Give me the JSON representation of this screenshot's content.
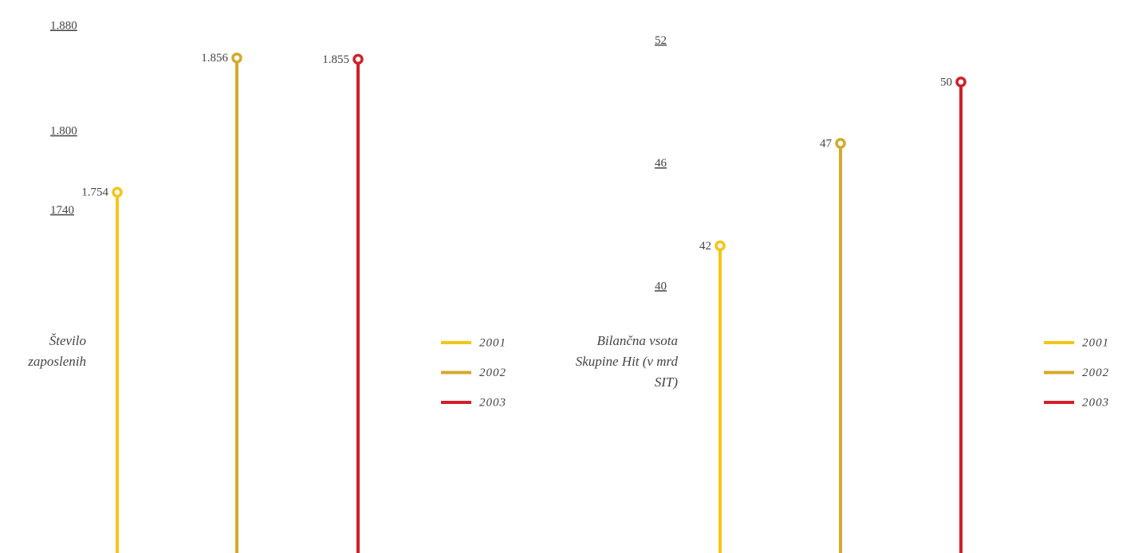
{
  "chart_data": [
    {
      "type": "lollipop",
      "y_label": "Število zaposlenih",
      "ylim": [
        1480,
        1900
      ],
      "yticks": [
        {
          "value": 1880,
          "label": "1.880"
        },
        {
          "value": 1800,
          "label": "1.800"
        },
        1740
      ],
      "legend": "right",
      "series": [
        {
          "name": "2001",
          "color": "#f5c518",
          "values": [
            1754
          ],
          "value_labels": [
            "1.754"
          ]
        },
        {
          "name": "2002",
          "color": "#d4a92a",
          "values": [
            1856
          ],
          "value_labels": [
            "1.856"
          ]
        },
        {
          "name": "2003",
          "color": "#d0202a",
          "values": [
            1855
          ],
          "value_labels": [
            "1.855"
          ]
        }
      ]
    },
    {
      "type": "lollipop",
      "y_label": "Bilančna vsota Skupine Hit (v mrd SIT)",
      "ylim": [
        27,
        54
      ],
      "yticks": [
        52,
        46,
        40
      ],
      "legend": "right",
      "series": [
        {
          "name": "2001",
          "color": "#f5c518",
          "values": [
            42
          ]
        },
        {
          "name": "2002",
          "color": "#d4a92a",
          "values": [
            47
          ]
        },
        {
          "name": "2003",
          "color": "#d0202a",
          "values": [
            50
          ]
        }
      ]
    }
  ]
}
